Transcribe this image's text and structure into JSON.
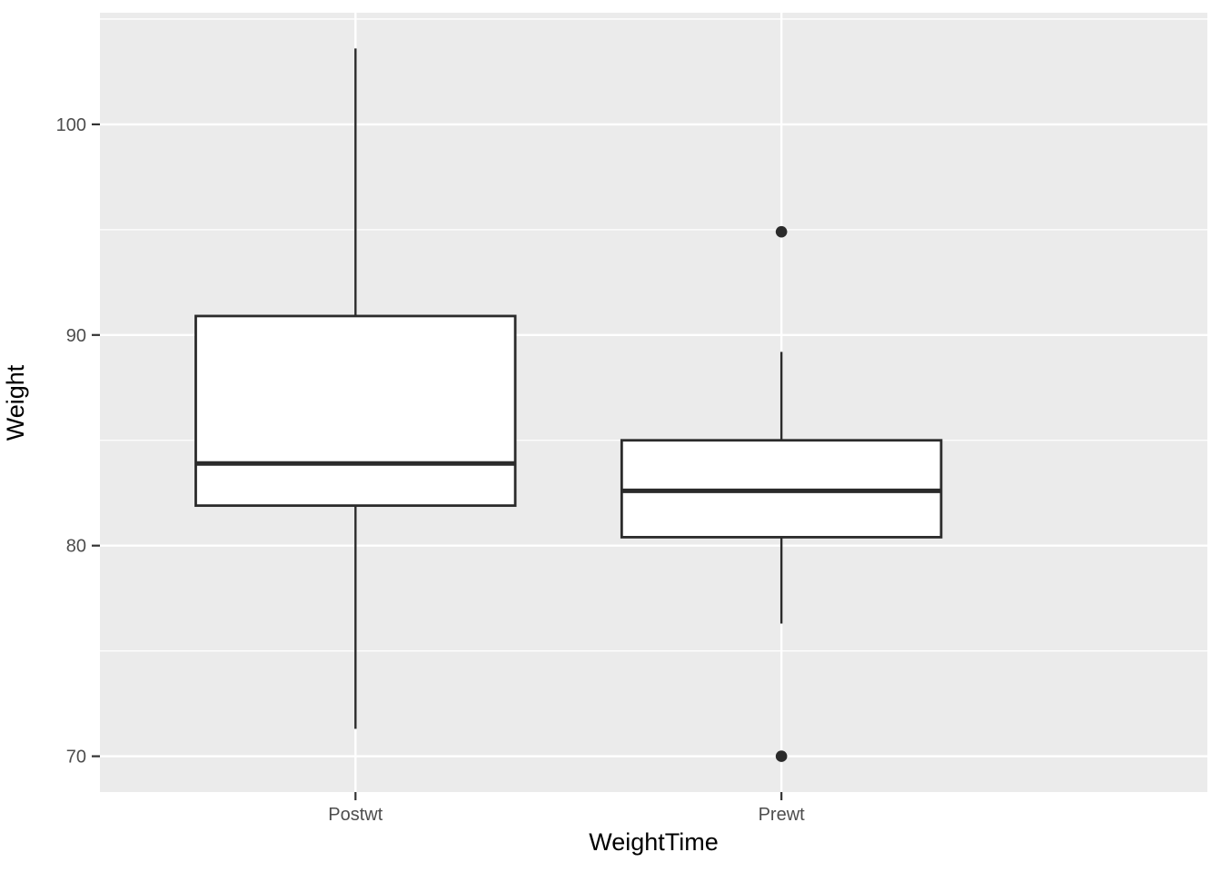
{
  "chart_data": {
    "type": "boxplot",
    "title": "",
    "xlabel": "WeightTime",
    "ylabel": "Weight",
    "categories": [
      "Postwt",
      "Prewt"
    ],
    "series": [
      {
        "category": "Postwt",
        "whisker_low": 71.3,
        "q1": 81.9,
        "median": 83.9,
        "q3": 90.9,
        "whisker_high": 103.6,
        "outliers": []
      },
      {
        "category": "Prewt",
        "whisker_low": 76.3,
        "q1": 80.4,
        "median": 82.6,
        "q3": 85.0,
        "whisker_high": 89.2,
        "outliers": [
          94.9,
          70.0
        ]
      }
    ],
    "ylim": [
      68.3,
      105.3
    ],
    "yticks": [
      70,
      80,
      90,
      100
    ],
    "yticks_minor": [
      75,
      85,
      95,
      105
    ],
    "grid": "horizontal-major-and-minor-plus-category-verticals",
    "legend": "none",
    "colors": {
      "panel_background": "#EBEBEB",
      "gridline": "#FFFFFF",
      "box_fill": "#FFFFFF",
      "box_border": "#2B2B2B",
      "tick_mark": "#333333",
      "tick_text": "#4D4D4D",
      "axis_title_text": "#000000",
      "figure_background": "#FFFFFF"
    }
  }
}
